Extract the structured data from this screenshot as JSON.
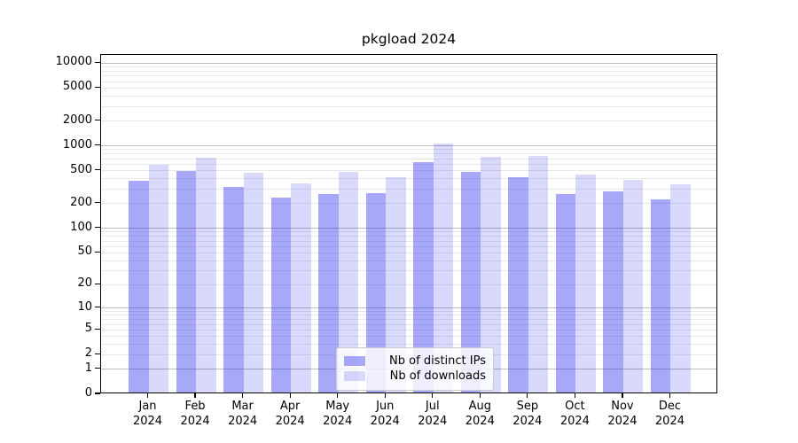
{
  "chart_data": {
    "type": "bar",
    "title": "pkgload 2024",
    "categories": [
      "Jan 2024",
      "Feb 2024",
      "Mar 2024",
      "Apr 2024",
      "May 2024",
      "Jun 2024",
      "Jul 2024",
      "Aug 2024",
      "Sep 2024",
      "Oct 2024",
      "Nov 2024",
      "Dec 2024"
    ],
    "series": [
      {
        "name": "Nb of distinct IPs",
        "color": "rgba(47,47,239,0.42)",
        "values": [
          362,
          477,
          305,
          225,
          250,
          255,
          610,
          460,
          400,
          248,
          265,
          214
        ]
      },
      {
        "name": "Nb of downloads",
        "color": "rgba(0,0,238,0.15)",
        "values": [
          558,
          690,
          447,
          338,
          458,
          400,
          1010,
          695,
          715,
          434,
          374,
          331
        ]
      }
    ],
    "xlabel": "",
    "ylabel": "",
    "yscale": "log1p",
    "ylim": [
      0,
      12589
    ],
    "yticks": [
      0,
      1,
      2,
      5,
      10,
      20,
      50,
      100,
      200,
      500,
      1000,
      2000,
      5000,
      10000
    ],
    "grid_major": [
      1,
      10,
      100,
      1000,
      10000
    ],
    "grid_minor_multipliers": [
      2,
      3,
      4,
      5,
      6,
      7,
      8,
      9
    ],
    "grid_minor_decades": [
      1,
      10,
      100,
      1000
    ],
    "legend_position": "lower center",
    "grid": true
  },
  "legend": {
    "items": [
      {
        "label": "Nb of distinct IPs"
      },
      {
        "label": "Nb of downloads"
      }
    ]
  },
  "colors": {
    "background": "#ffffff",
    "text": "#000000",
    "axis": "#000000",
    "grid_major": "#bcbcbc",
    "grid_minor": "#e9e9e9",
    "bar_ips": "rgba(47,47,239,0.42)",
    "bar_downloads": "rgba(0,0,238,0.15)",
    "legend_border": "#cccccc",
    "legend_bg": "rgba(255,255,255,0.8)"
  }
}
